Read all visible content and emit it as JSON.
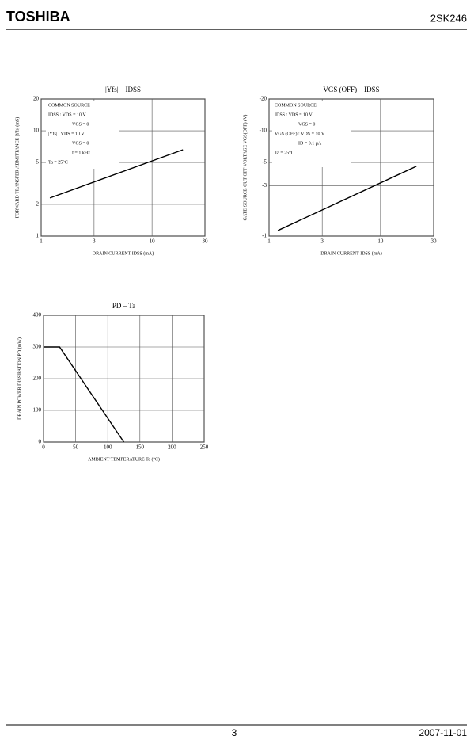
{
  "header": {
    "brand": "TOSHIBA",
    "part": "2SK246"
  },
  "footer": {
    "page": "3",
    "date": "2007-11-01"
  },
  "chart_data": [
    {
      "type": "line",
      "title": "|Yfs| – IDSS",
      "x_label": "DRAIN CURRENT IDSS (mA)",
      "y_label": "FORWARD TRANSFER ADMITTANCE |Yfs| (mS)",
      "x": [
        1.2,
        19
      ],
      "values": [
        2.3,
        6.6
      ],
      "xlim": [
        1,
        30
      ],
      "xticks": [
        1,
        3,
        10,
        30
      ],
      "ylim": [
        1,
        20
      ],
      "yticks": [
        1,
        2,
        5,
        10,
        20
      ],
      "xlog": true,
      "ylog": true,
      "grid": true,
      "color": "#000000",
      "annotations": [
        "COMMON SOURCE",
        "IDSS : VDS = 10 V",
        "VGS = 0",
        "|Yfs| : VDS = 10 V",
        "VGS = 0",
        "f = 1 kHz",
        "Ta = 25°C"
      ]
    },
    {
      "type": "line",
      "title": "VGS (OFF) – IDSS",
      "x_label": "DRAIN CURRENT IDSS (mA)",
      "y_label": "GATE-SOURCE CUT-OFF VOLTAGE VGS(OFF) (V)",
      "x": [
        1.2,
        21
      ],
      "values": [
        -1.13,
        -4.6
      ],
      "xlim": [
        1,
        30
      ],
      "xticks": [
        1,
        3,
        10,
        30
      ],
      "ylim": [
        -1,
        -20
      ],
      "yticks": [
        -1,
        -3,
        -5,
        -10,
        -20
      ],
      "xlog": true,
      "ylog": true,
      "grid": true,
      "color": "#000000",
      "annotations": [
        "COMMON SOURCE",
        "IDSS : VDS = 10 V",
        "VGS = 0",
        "VGS (OFF) : VDS = 10 V",
        "ID = 0.1 μA",
        "Ta = 25°C"
      ]
    },
    {
      "type": "line",
      "title": "PD – Ta",
      "x_label": "AMBIENT TEMPERATURE Ta (°C)",
      "y_label": "DRAIN POWER DISSIPATION PD (mW)",
      "x": [
        0,
        25,
        125
      ],
      "values": [
        300,
        300,
        0
      ],
      "xlim": [
        0,
        250
      ],
      "xticks": [
        0,
        50,
        100,
        150,
        200,
        250
      ],
      "ylim": [
        0,
        400
      ],
      "yticks": [
        0,
        100,
        200,
        300,
        400
      ],
      "xlog": false,
      "ylog": false,
      "grid": true,
      "color": "#000000"
    }
  ]
}
